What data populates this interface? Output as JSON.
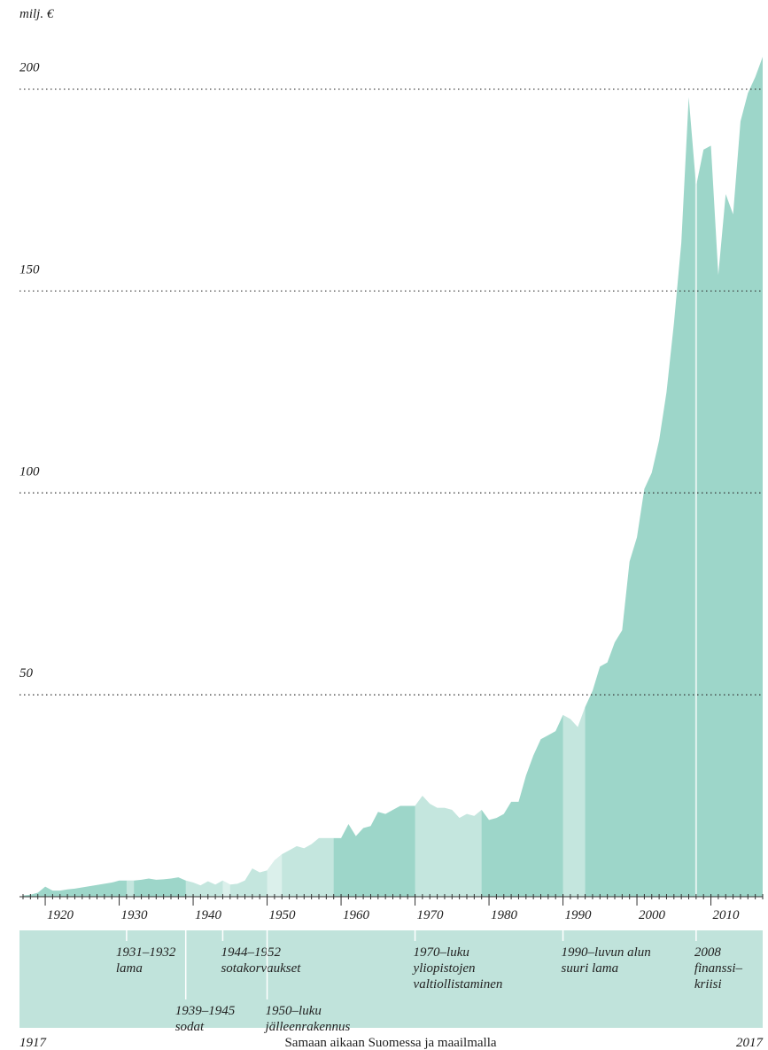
{
  "chart_data": {
    "type": "area",
    "y_label": "milj. €",
    "x": [
      1917,
      1918,
      1919,
      1920,
      1921,
      1922,
      1923,
      1924,
      1925,
      1926,
      1927,
      1928,
      1929,
      1930,
      1931,
      1932,
      1933,
      1934,
      1935,
      1936,
      1937,
      1938,
      1939,
      1940,
      1941,
      1942,
      1943,
      1944,
      1945,
      1946,
      1947,
      1948,
      1949,
      1950,
      1951,
      1952,
      1953,
      1954,
      1955,
      1956,
      1957,
      1958,
      1959,
      1960,
      1961,
      1962,
      1963,
      1964,
      1965,
      1966,
      1967,
      1968,
      1969,
      1970,
      1971,
      1972,
      1973,
      1974,
      1975,
      1976,
      1977,
      1978,
      1979,
      1980,
      1981,
      1982,
      1983,
      1984,
      1985,
      1986,
      1987,
      1988,
      1989,
      1990,
      1991,
      1992,
      1993,
      1994,
      1995,
      1996,
      1997,
      1998,
      1999,
      2000,
      2001,
      2002,
      2003,
      2004,
      2005,
      2006,
      2007,
      2008,
      2009,
      2010,
      2011,
      2012,
      2013,
      2014,
      2015,
      2016,
      2017
    ],
    "values": [
      0.3,
      0.5,
      1,
      2.5,
      1.5,
      1.5,
      1.8,
      2,
      2.3,
      2.6,
      2.9,
      3.2,
      3.5,
      4,
      4,
      4,
      4.2,
      4.5,
      4.2,
      4.3,
      4.5,
      4.8,
      4,
      3.5,
      2.8,
      3.8,
      3,
      4,
      3,
      3.2,
      4,
      7,
      6,
      6.5,
      9,
      10.5,
      11.5,
      12.5,
      12,
      13,
      14.5,
      14.5,
      14.5,
      14.5,
      18,
      15,
      17,
      17.5,
      21,
      20.5,
      21.5,
      22.5,
      22.5,
      22.5,
      25,
      23,
      22,
      22,
      21.5,
      19.5,
      20.5,
      20,
      21.5,
      19,
      19.5,
      20.5,
      23.5,
      23.5,
      30,
      35,
      39,
      40,
      41,
      45,
      44,
      42,
      47,
      51,
      57,
      58,
      63,
      66,
      83,
      89,
      101,
      105,
      113,
      125,
      142,
      162,
      198,
      176,
      185,
      186,
      154,
      174,
      169,
      192,
      199,
      203,
      208
    ],
    "color": "#9dd6c9",
    "xlim": [
      1917,
      2017
    ],
    "ylim": [
      0,
      210
    ],
    "xticks": [
      1920,
      1930,
      1940,
      1950,
      1960,
      1970,
      1980,
      1990,
      2000,
      2010
    ],
    "yticks": [
      50,
      100,
      150,
      200
    ],
    "grid": true,
    "periods": [
      {
        "lines": [
          "1931–1932",
          "lama"
        ],
        "span": [
          1931,
          1932
        ]
      },
      {
        "lines": [
          "1939–1945",
          "sodat"
        ],
        "span": [
          1939,
          1945
        ]
      },
      {
        "lines": [
          "1944–1952",
          "sotakorvaukset"
        ],
        "span": [
          1944,
          1952
        ]
      },
      {
        "lines": [
          "1950–luku",
          "jälleenrakennus"
        ],
        "span": [
          1950,
          1959
        ]
      },
      {
        "lines": [
          "1970–luku",
          "yliopistojen",
          "valtiollistaminen"
        ],
        "span": [
          1970,
          1979
        ]
      },
      {
        "lines": [
          "1990–luvun alun",
          "suuri lama"
        ],
        "span": [
          1990,
          1993
        ]
      },
      {
        "lines": [
          "2008",
          "finanssi–",
          "kriisi"
        ],
        "span": [
          2008,
          2008
        ]
      }
    ],
    "footer_left": "1917",
    "footer_center": "Samaan aikaan Suomessa ja maailmalla",
    "footer_right": "2017"
  }
}
